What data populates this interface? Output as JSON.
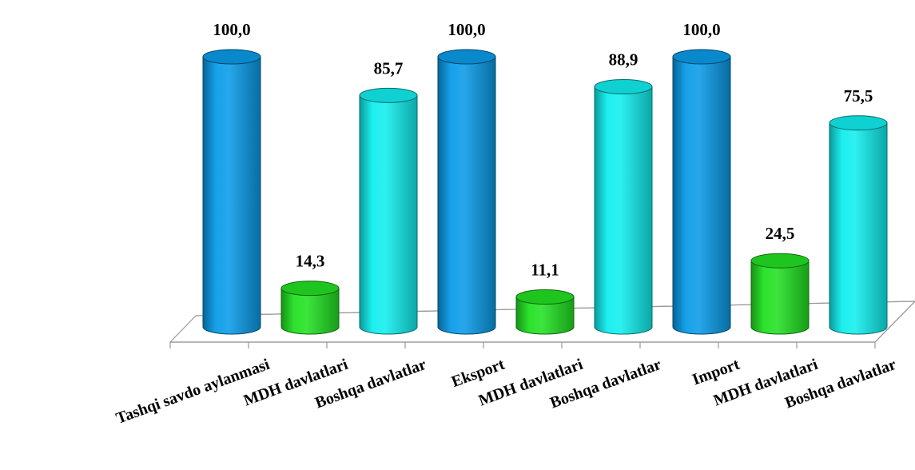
{
  "chart_data": {
    "type": "bar",
    "style": "3d-cylinder",
    "categories": [
      "Tashqi savdo aylanmasi",
      "MDH davlatlari",
      "Boshqa davlatlar",
      "Eksport",
      "MDH davlatlari",
      "Boshqa davlatlar",
      "Import",
      "MDH davlatlari",
      "Boshqa davlatlar"
    ],
    "values": [
      100.0,
      14.3,
      85.7,
      100.0,
      11.1,
      88.9,
      100.0,
      24.5,
      75.5
    ],
    "value_labels": [
      "100,0",
      "14,3",
      "85,7",
      "100,0",
      "11,1",
      "88,9",
      "100,0",
      "24,5",
      "75,5"
    ],
    "point_colors": [
      "#0a9be8",
      "#22e022",
      "#11eeee",
      "#0a9be8",
      "#22e022",
      "#11eeee",
      "#0a9be8",
      "#22e022",
      "#11eeee"
    ],
    "ylim": [
      0,
      100
    ],
    "grid": false,
    "legend": "none"
  }
}
